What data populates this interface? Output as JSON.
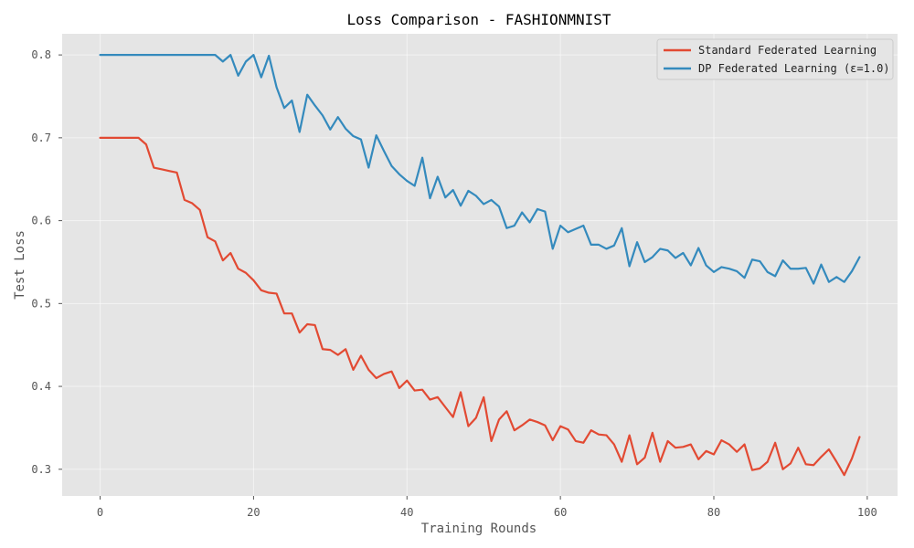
{
  "chart_data": {
    "type": "line",
    "title": "Loss Comparison - FASHIONMNIST",
    "xlabel": "Training Rounds",
    "ylabel": "Test Loss",
    "xlim": [
      -4.95,
      103.95
    ],
    "ylim": [
      0.2678,
      0.8255
    ],
    "xticks": [
      0,
      20,
      40,
      60,
      80,
      100
    ],
    "yticks": [
      0.3,
      0.4,
      0.5,
      0.6,
      0.7,
      0.8
    ],
    "grid": true,
    "legend_position": "top-right",
    "background": "#e5e5e5",
    "series": [
      {
        "name": "Standard Federated Learning",
        "color": "#e24a33",
        "y": [
          0.7,
          0.7,
          0.7,
          0.7,
          0.7,
          0.7,
          0.692,
          0.664,
          0.662,
          0.66,
          0.658,
          0.625,
          0.621,
          0.613,
          0.58,
          0.575,
          0.552,
          0.561,
          0.542,
          0.537,
          0.528,
          0.516,
          0.513,
          0.512,
          0.488,
          0.488,
          0.465,
          0.475,
          0.474,
          0.445,
          0.444,
          0.438,
          0.445,
          0.42,
          0.437,
          0.42,
          0.41,
          0.415,
          0.418,
          0.398,
          0.407,
          0.395,
          0.396,
          0.384,
          0.387,
          0.375,
          0.363,
          0.393,
          0.352,
          0.362,
          0.387,
          0.334,
          0.36,
          0.37,
          0.347,
          0.353,
          0.36,
          0.357,
          0.353,
          0.335,
          0.352,
          0.348,
          0.334,
          0.332,
          0.347,
          0.342,
          0.341,
          0.33,
          0.309,
          0.341,
          0.306,
          0.314,
          0.344,
          0.309,
          0.334,
          0.326,
          0.327,
          0.33,
          0.312,
          0.322,
          0.318,
          0.335,
          0.33,
          0.321,
          0.33,
          0.299,
          0.301,
          0.309,
          0.332,
          0.3,
          0.307,
          0.326,
          0.306,
          0.305,
          0.315,
          0.324,
          0.309,
          0.293,
          0.313,
          0.339
        ]
      },
      {
        "name": "DP Federated Learning (ε=1.0)",
        "color": "#348abd",
        "y": [
          0.8,
          0.8,
          0.8,
          0.8,
          0.8,
          0.8,
          0.8,
          0.8,
          0.8,
          0.8,
          0.8,
          0.8,
          0.8,
          0.8,
          0.8,
          0.8,
          0.792,
          0.8,
          0.775,
          0.792,
          0.8,
          0.773,
          0.799,
          0.761,
          0.736,
          0.745,
          0.707,
          0.752,
          0.739,
          0.727,
          0.71,
          0.725,
          0.711,
          0.702,
          0.698,
          0.664,
          0.703,
          0.684,
          0.666,
          0.656,
          0.648,
          0.642,
          0.676,
          0.627,
          0.653,
          0.628,
          0.637,
          0.618,
          0.636,
          0.63,
          0.62,
          0.625,
          0.617,
          0.591,
          0.594,
          0.61,
          0.598,
          0.614,
          0.611,
          0.566,
          0.594,
          0.586,
          0.59,
          0.594,
          0.571,
          0.571,
          0.566,
          0.57,
          0.591,
          0.545,
          0.574,
          0.55,
          0.556,
          0.566,
          0.564,
          0.555,
          0.561,
          0.546,
          0.567,
          0.546,
          0.538,
          0.544,
          0.542,
          0.539,
          0.531,
          0.553,
          0.551,
          0.538,
          0.533,
          0.552,
          0.542,
          0.542,
          0.543,
          0.524,
          0.547,
          0.526,
          0.532,
          0.526,
          0.539,
          0.556
        ]
      }
    ]
  }
}
